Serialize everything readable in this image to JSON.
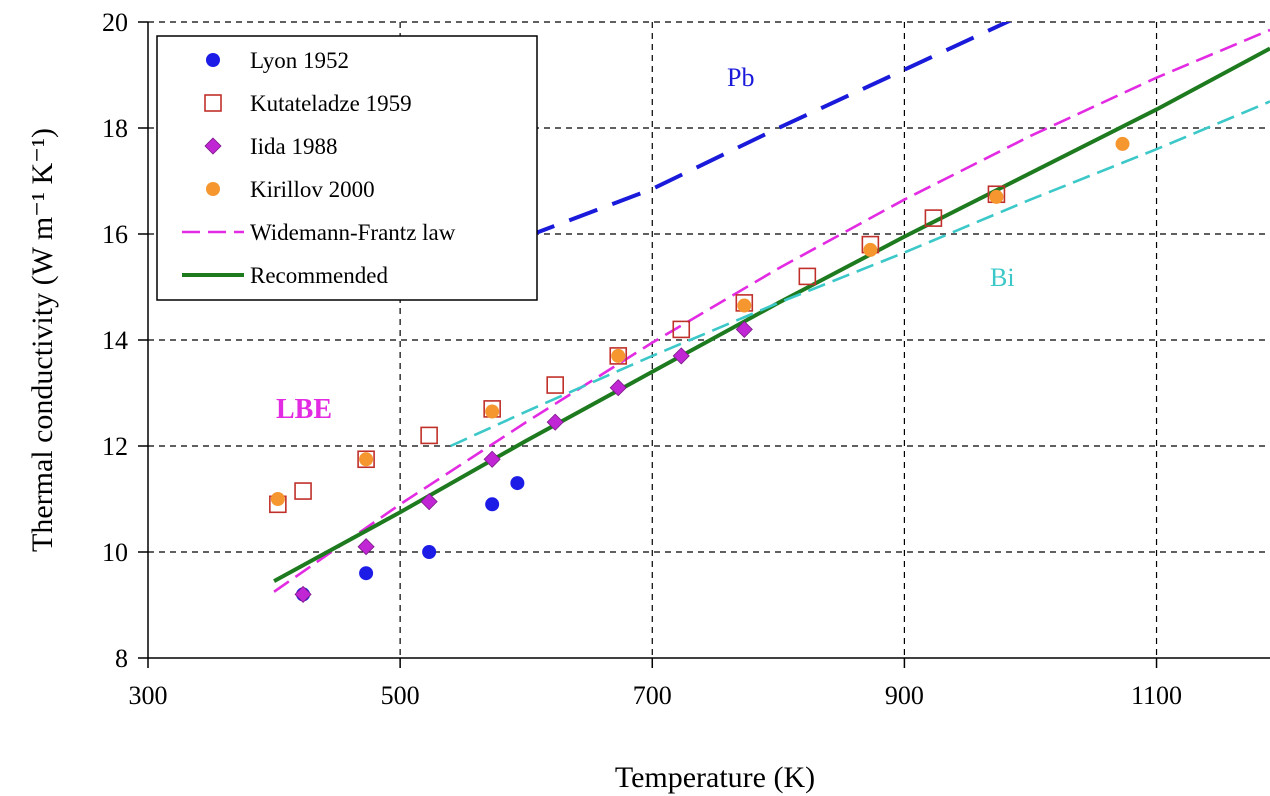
{
  "chart_data": {
    "type": "scatter",
    "xlabel": "Temperature (K)",
    "ylabel": "Thermal conductivity (W m⁻¹ K⁻¹)",
    "xlim": [
      300,
      1190
    ],
    "ylim": [
      8,
      20
    ],
    "xticks": [
      300,
      500,
      700,
      900,
      1100
    ],
    "yticks": [
      8,
      10,
      12,
      14,
      16,
      18,
      20
    ],
    "grid": true,
    "legend_position": "top-left",
    "annotations": [
      {
        "text": "Pb",
        "color": "#1a1adb"
      },
      {
        "text": "Bi",
        "color": "#3cc8c8"
      },
      {
        "text": "LBE",
        "color": "#e22be2"
      }
    ],
    "series": [
      {
        "name": "Lyon 1952",
        "kind": "points",
        "marker": "circle",
        "color": "#1c1ce6",
        "x": [
          423,
          473,
          523,
          573,
          593
        ],
        "y": [
          9.2,
          9.6,
          10.0,
          10.9,
          11.3
        ]
      },
      {
        "name": "Kutateladze 1959",
        "kind": "points",
        "marker": "open-square",
        "color": "#c0302a",
        "x": [
          403,
          423,
          473,
          523,
          573,
          623,
          673,
          723,
          773,
          823,
          873,
          923,
          973
        ],
        "y": [
          10.9,
          11.15,
          11.75,
          12.2,
          12.7,
          13.15,
          13.7,
          14.2,
          14.7,
          15.2,
          15.8,
          16.3,
          16.75
        ]
      },
      {
        "name": "Iida 1988",
        "kind": "points",
        "marker": "diamond",
        "color": "#c026d3",
        "x": [
          423,
          473,
          523,
          573,
          623,
          673,
          723,
          773
        ],
        "y": [
          9.2,
          10.1,
          10.95,
          11.75,
          12.45,
          13.1,
          13.7,
          14.2
        ]
      },
      {
        "name": "Kirillov 2000",
        "kind": "points",
        "marker": "circle",
        "color": "#f5962f",
        "x": [
          403,
          473,
          573,
          673,
          773,
          873,
          973,
          1073
        ],
        "y": [
          11.0,
          11.75,
          12.65,
          13.7,
          14.65,
          15.7,
          16.7,
          17.7
        ]
      },
      {
        "name": "Widemann-Frantz law",
        "kind": "line",
        "style": "dashed",
        "color": "#e22be2",
        "x": [
          400,
          500,
          600,
          700,
          800,
          900,
          1000,
          1100,
          1190
        ],
        "y": [
          9.25,
          10.9,
          12.45,
          13.95,
          15.35,
          16.65,
          17.85,
          18.95,
          19.85
        ]
      },
      {
        "name": "Recommended",
        "kind": "line",
        "style": "solid",
        "color": "#1e7a1e",
        "x": [
          400,
          500,
          600,
          700,
          800,
          900,
          1000,
          1100,
          1190
        ],
        "y": [
          9.45,
          10.75,
          12.1,
          13.4,
          14.7,
          15.95,
          17.15,
          18.35,
          19.5
        ]
      },
      {
        "name": "Pb",
        "kind": "line",
        "style": "long-dash",
        "color": "#1a1adb",
        "x": [
          600,
          700,
          800,
          900,
          995
        ],
        "y": [
          15.95,
          16.85,
          18.0,
          19.1,
          20.15
        ]
      },
      {
        "name": "Bi",
        "kind": "line",
        "style": "dashed",
        "color": "#3cc8c8",
        "x": [
          540,
          600,
          700,
          800,
          900,
          1000,
          1100,
          1190
        ],
        "y": [
          12.0,
          12.65,
          13.7,
          14.7,
          15.65,
          16.65,
          17.6,
          18.5
        ]
      }
    ]
  }
}
